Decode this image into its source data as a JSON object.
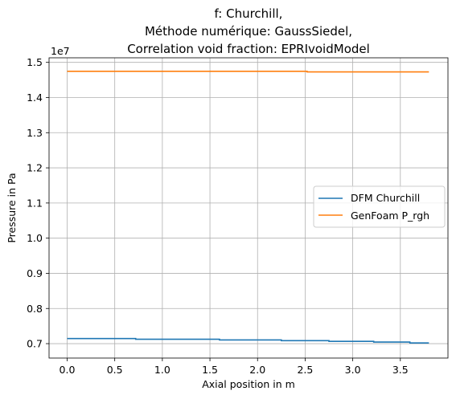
{
  "chart_data": {
    "type": "line",
    "title_lines": [
      "f: Churchill,",
      "Méthode numérique: GaussSiedel,",
      "Correlation void fraction: EPRIvoidModel"
    ],
    "xlabel": "Axial position in m",
    "ylabel": "Pressure in Pa",
    "offset_label": "1e7",
    "xlim": [
      -0.19,
      4.0
    ],
    "ylim": [
      0.659,
      1.513
    ],
    "x_ticks": [
      0.0,
      0.5,
      1.0,
      1.5,
      2.0,
      2.5,
      3.0,
      3.5
    ],
    "x_tick_labels": [
      "0.0",
      "0.5",
      "1.0",
      "1.5",
      "2.0",
      "2.5",
      "3.0",
      "3.5"
    ],
    "y_ticks": [
      0.7,
      0.8,
      0.9,
      1.0,
      1.1,
      1.2,
      1.3,
      1.4,
      1.5
    ],
    "y_tick_labels": [
      "0.7",
      "0.8",
      "0.9",
      "1.0",
      "1.1",
      "1.2",
      "1.3",
      "1.4",
      "1.5"
    ],
    "grid": true,
    "legend_position": "center-right",
    "series": [
      {
        "name": "DFM Churchill",
        "color": "#1f77b4",
        "x": [
          0.0,
          0.72,
          0.72,
          1.6,
          1.6,
          2.25,
          2.25,
          2.75,
          2.75,
          3.22,
          3.22,
          3.6,
          3.6,
          3.8
        ],
        "y": [
          0.7145,
          0.7145,
          0.7125,
          0.7125,
          0.7105,
          0.7105,
          0.7085,
          0.7085,
          0.7065,
          0.7065,
          0.7045,
          0.7045,
          0.702,
          0.702
        ]
      },
      {
        "name": "GenFoam P_rgh",
        "color": "#ff7f0e",
        "x": [
          0.0,
          2.52,
          2.52,
          3.8
        ],
        "y": [
          1.4745,
          1.4745,
          1.473,
          1.473
        ]
      }
    ]
  }
}
